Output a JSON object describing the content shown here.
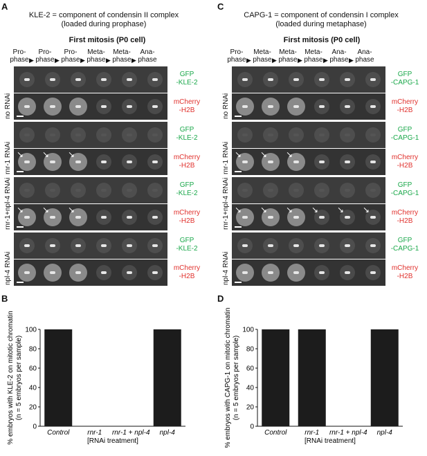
{
  "panel_A": {
    "letter": "A",
    "title_line1": "KLE-2 = component of condensin II complex",
    "title_line2": "(loaded during prophase)",
    "subtitle": "First mitosis (P0 cell)",
    "phases": [
      "Pro-\nphase",
      "Pro-\nphase",
      "Pro-\nphase",
      "Meta-\nphase",
      "Meta-\nphase",
      "Ana-\nphase"
    ],
    "rows": [
      {
        "label": "no RNAi",
        "gfp": [
          "GFP",
          "-KLE-2"
        ],
        "mch": [
          "mCherry",
          "-H2B"
        ]
      },
      {
        "label": "rnr-1 RNAi",
        "gfp": [
          "GFP",
          "-KLE-2"
        ],
        "mch": [
          "mCherry",
          "-H2B"
        ]
      },
      {
        "label": "rnr-1+npl-4 RNAi",
        "gfp": [
          "GFP",
          "-KLE-2"
        ],
        "mch": [
          "mCherry",
          "-H2B"
        ]
      },
      {
        "label": "npl-4 RNAi",
        "gfp": [
          "GFP",
          "-KLE-2"
        ],
        "mch": [
          "mCherry",
          "-H2B"
        ]
      }
    ]
  },
  "panel_C": {
    "letter": "C",
    "title_line1": "CAPG-1 = component of condensin I complex",
    "title_line2": "(loaded during metaphase)",
    "subtitle": "First mitosis (P0 cell)",
    "phases": [
      "Pro-\nphase",
      "Meta-\nphase",
      "Meta-\nphase",
      "Meta-\nphase",
      "Ana-\nphase",
      "Ana-\nphase"
    ],
    "rows": [
      {
        "label": "no RNAi",
        "gfp": [
          "GFP",
          "-CAPG-1"
        ],
        "mch": [
          "mCherry",
          "-H2B"
        ]
      },
      {
        "label": "rnr-1 RNAi",
        "gfp": [
          "GFP",
          "-CAPG-1"
        ],
        "mch": [
          "mCherry",
          "-H2B"
        ]
      },
      {
        "label": "rnr-1+npl-4 RNAi",
        "gfp": [
          "GFP",
          "-CAPG-1"
        ],
        "mch": [
          "mCherry",
          "-H2B"
        ]
      },
      {
        "label": "npl-4 RNAi",
        "gfp": [
          "GFP",
          "-CAPG-1"
        ],
        "mch": [
          "mCherry",
          "-H2B"
        ]
      }
    ]
  },
  "colors": {
    "gfp": "#1aa84a",
    "mcherry": "#e0302c",
    "bar": "#1c1c1c",
    "micrograph": "#3a3a3a"
  },
  "chart_data": [
    {
      "panel": "B",
      "type": "bar",
      "categories": [
        "Control",
        "rnr-1",
        "rnr-1 + npl-4",
        "npl-4"
      ],
      "values": [
        100,
        0,
        0,
        100
      ],
      "ylabel_line1": "% embryos with KLE-2 on mitotic chromatin",
      "ylabel_line2": "(n = 5 embryos per sample)",
      "xlabel": "[RNAi treatment]",
      "yticks": [
        "0",
        "20",
        "40",
        "60",
        "80",
        "100"
      ],
      "ylim": [
        0,
        100
      ]
    },
    {
      "panel": "D",
      "type": "bar",
      "categories": [
        "Control",
        "rnr-1",
        "rnr-1 + npl-4",
        "npl-4"
      ],
      "values": [
        100,
        100,
        0,
        100
      ],
      "ylabel_line1": "% embryos with CAPG-1 on mitotic chromatin",
      "ylabel_line2": "(n = 5 embryos per sample)",
      "xlabel": "[RNAi treatment]",
      "yticks": [
        "0",
        "20",
        "40",
        "60",
        "80",
        "100"
      ],
      "ylim": [
        0,
        100
      ]
    }
  ]
}
